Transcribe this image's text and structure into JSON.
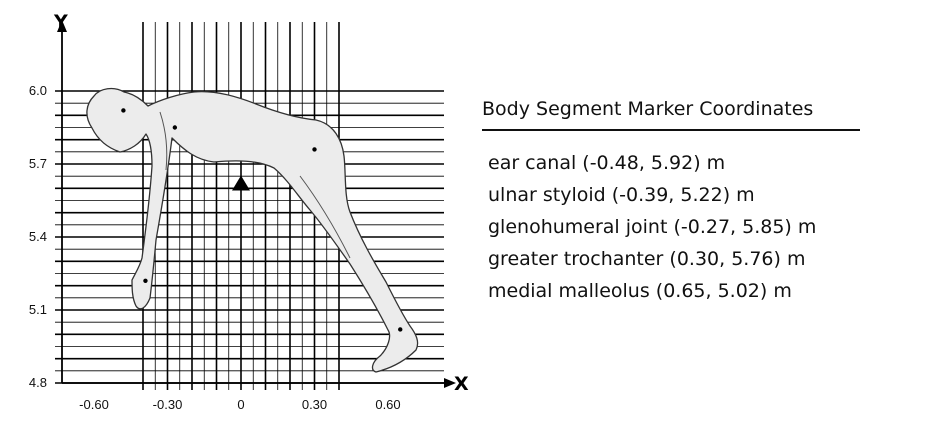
{
  "axes": {
    "x_letter": "X",
    "y_letter": "Y",
    "x_ticks": [
      "-0.60",
      "-0.30",
      "0",
      "0.30",
      "0.60"
    ],
    "y_ticks": [
      "6.0",
      "5.7",
      "5.4",
      "5.1",
      "4.8"
    ]
  },
  "legend": {
    "title": "Body Segment Marker Coordinates",
    "items": [
      "ear canal (-0.48, 5.92) m",
      "ulnar styloid (-0.39, 5.22) m",
      "glenohumeral joint (-0.27, 5.85) m",
      "greater trochanter (0.30, 5.76) m",
      "medial malleolus (0.65, 5.02) m"
    ]
  },
  "markers": [
    {
      "name": "ear canal",
      "x": -0.48,
      "y": 5.92
    },
    {
      "name": "ulnar styloid",
      "x": -0.39,
      "y": 5.22
    },
    {
      "name": "glenohumeral joint",
      "x": -0.27,
      "y": 5.85
    },
    {
      "name": "greater trochanter",
      "x": 0.3,
      "y": 5.76
    },
    {
      "name": "medial malleolus",
      "x": 0.65,
      "y": 5.02
    }
  ],
  "reference_point": {
    "x": 0,
    "y": 5.62
  }
}
